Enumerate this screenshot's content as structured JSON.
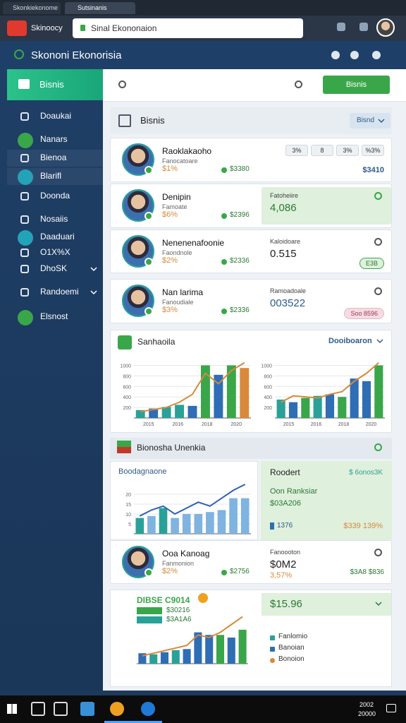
{
  "tabs": [
    "Skonkiekonome",
    "Sutsinanis"
  ],
  "address_bar": {
    "logo": "Skinoocy",
    "url": "Sinal Ekononaion"
  },
  "app_title": "Skononi Ekonorisia",
  "sidebar": {
    "active": "Bisnis",
    "items": [
      "Doaukai",
      "Nanars",
      "Bienoa",
      "Blarifl",
      "Doonda",
      "Nosaiis",
      "Daaduari",
      "O1X%X",
      "DhoSK",
      "Randoemi",
      "Elsnost"
    ]
  },
  "toolbar": {
    "button": "Bisnis"
  },
  "panel": {
    "title": "Bisnis",
    "dropdown": "Bisnd"
  },
  "people": [
    {
      "name": "Raoklakaoho",
      "subtitle": "Fanocatoare",
      "change": "$1%",
      "amount": "$3380",
      "tags": [
        "3%",
        "8",
        "3%",
        "%3%"
      ],
      "value": "$3410"
    },
    {
      "name": "Denipin",
      "subtitle": "Famoate",
      "change": "$6%",
      "amount": "$2396",
      "label": "Fatoheiire",
      "value": "4,086",
      "highlight": true
    },
    {
      "name": "Nenenenafoonie",
      "subtitle": "Faondnole",
      "change": "$2%",
      "amount": "$2336",
      "label": "Kaloidoare",
      "value": "0.515",
      "badge": "E3B"
    },
    {
      "name": "Nan larima",
      "subtitle": "Fanoudiale",
      "change": "$3%",
      "amount": "$2336",
      "label": "Ramoadoale",
      "value": "003522",
      "badge": "Soo 8596"
    }
  ],
  "trend_card": {
    "title": "Sanhaoila",
    "link": "Dooiboaron",
    "charts": [
      {
        "ylim": [
          0,
          1100
        ],
        "yticks": [
          200,
          400,
          600,
          800,
          1000
        ],
        "x_labels": [
          "2015",
          "2016",
          "2018",
          "2020"
        ],
        "values": [
          150,
          180,
          210,
          250,
          230,
          1000,
          820,
          1000,
          950
        ],
        "colors": [
          "#2aa198",
          "#2f6db5",
          "#2aa198",
          "#2aa198",
          "#2f6db5",
          "#3aa64a",
          "#2f6db5",
          "#3aa64a",
          "#d8893a"
        ],
        "line": [
          120,
          160,
          200,
          300,
          450,
          850,
          650,
          900,
          1050
        ],
        "line_color": "#d8893a"
      },
      {
        "ylim": [
          0,
          1100
        ],
        "yticks": [
          200,
          400,
          600,
          800,
          1000
        ],
        "x_labels": [
          "2015",
          "2016",
          "2018",
          "2020"
        ],
        "values": [
          350,
          300,
          380,
          420,
          450,
          400,
          750,
          700,
          1000
        ],
        "colors": [
          "#2aa198",
          "#2f6db5",
          "#3aa64a",
          "#2aa198",
          "#2f6db5",
          "#3aa64a",
          "#2f6db5",
          "#2f6db5",
          "#3aa64a"
        ],
        "line": [
          300,
          420,
          400,
          380,
          450,
          500,
          700,
          850,
          1050
        ],
        "line_color": "#d8893a"
      }
    ]
  },
  "section": {
    "title": "Bionosha Unenkia",
    "chart_card": {
      "title": "Boodagnaone",
      "chart": {
        "ylim": [
          0,
          25
        ],
        "yticks": [
          5,
          10,
          15,
          20
        ],
        "x_labels": [],
        "values": [
          8,
          9,
          13,
          8,
          10,
          10,
          11,
          12,
          18,
          18
        ],
        "colors": [
          "#2aa198",
          "#7fb3e0",
          "#2aa198",
          "#7fb3e0",
          "#7fb3e0",
          "#7fb3e0",
          "#7fb3e0",
          "#7fb3e0",
          "#7fb3e0",
          "#7fb3e0"
        ],
        "line": [
          9,
          12,
          14,
          10,
          13,
          16,
          14,
          18,
          22,
          25
        ],
        "line_color": "#2f5fb5"
      }
    },
    "summary": {
      "title": "Roodert",
      "badge": "$ 6onos3K",
      "lines": [
        "Oon Ranksiar",
        "$03A206"
      ],
      "left": "1376",
      "right": "$339 139%"
    },
    "person": {
      "name": "Ooa Kanoag",
      "subtitle": "Fanmonion",
      "change": "$2%",
      "amount": "$2756",
      "label": "Fanoooton",
      "value": "$0M2",
      "sub": "3,57%",
      "right": "$3A8 $836"
    }
  },
  "final_card": {
    "title": "DIBSE C9014",
    "legend": [
      "$30216",
      "$3A1A6"
    ],
    "chart": {
      "ylim": [
        0,
        100
      ],
      "yticks": [],
      "x_labels": [],
      "values": [
        20,
        18,
        22,
        26,
        28,
        60,
        55,
        55,
        50,
        65
      ],
      "colors": [
        "#2f6db5",
        "#2aa198",
        "#2f6db5",
        "#2aa198",
        "#2f6db5",
        "#2f6db5",
        "#2f6db5",
        "#3aa64a",
        "#2f6db5",
        "#3aa64a"
      ],
      "line": [
        15,
        20,
        25,
        30,
        35,
        55,
        50,
        60,
        75,
        90
      ],
      "line_color": "#d8893a"
    },
    "value": "$15.96",
    "list": [
      "Fanlomio",
      "Banoian",
      "Bonoion"
    ],
    "list_colors": [
      "#2aa198",
      "#2f6db5",
      "#d8893a"
    ]
  },
  "taskbar": {
    "clock": [
      "2002",
      "20000"
    ]
  }
}
